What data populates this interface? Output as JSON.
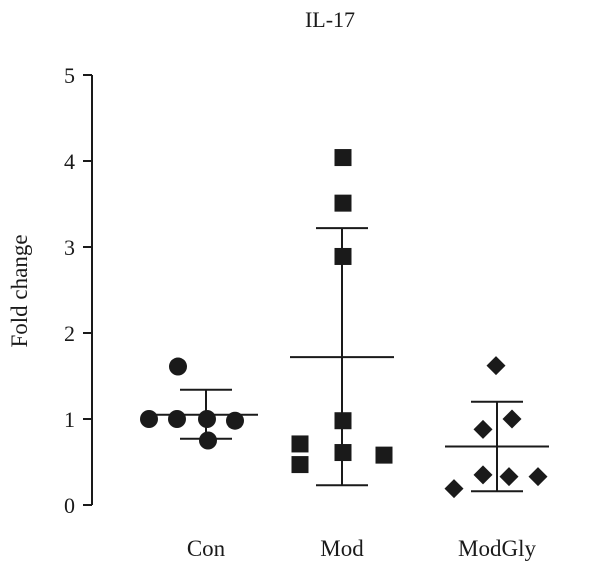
{
  "chart_data": {
    "type": "scatter",
    "title": "IL-17",
    "xlabel": "",
    "ylabel": "Fold change",
    "ylim": [
      0,
      5
    ],
    "yticks": [
      "0",
      "1",
      "2",
      "3",
      "4",
      "5"
    ],
    "categories": [
      "Con",
      "Mod",
      "ModGly"
    ],
    "grid": false,
    "legend": "none",
    "series": [
      {
        "category": "Con",
        "marker": "circle",
        "color": "#1a1a1a",
        "values": [
          1.0,
          1.0,
          1.0,
          0.98,
          1.61,
          0.75
        ],
        "mean": 1.05,
        "sd_upper": 1.34,
        "sd_lower": 0.77
      },
      {
        "category": "Mod",
        "marker": "square",
        "color": "#1a1a1a",
        "values": [
          4.04,
          3.51,
          2.89,
          0.98,
          0.71,
          0.61,
          0.58,
          0.47
        ],
        "mean": 1.72,
        "sd_upper": 3.22,
        "sd_lower": 0.23
      },
      {
        "category": "ModGly",
        "marker": "diamond",
        "color": "#1a1a1a",
        "values": [
          1.62,
          1.0,
          0.88,
          0.35,
          0.33,
          0.33,
          0.19
        ],
        "mean": 0.68,
        "sd_upper": 1.2,
        "sd_lower": 0.16
      }
    ]
  }
}
